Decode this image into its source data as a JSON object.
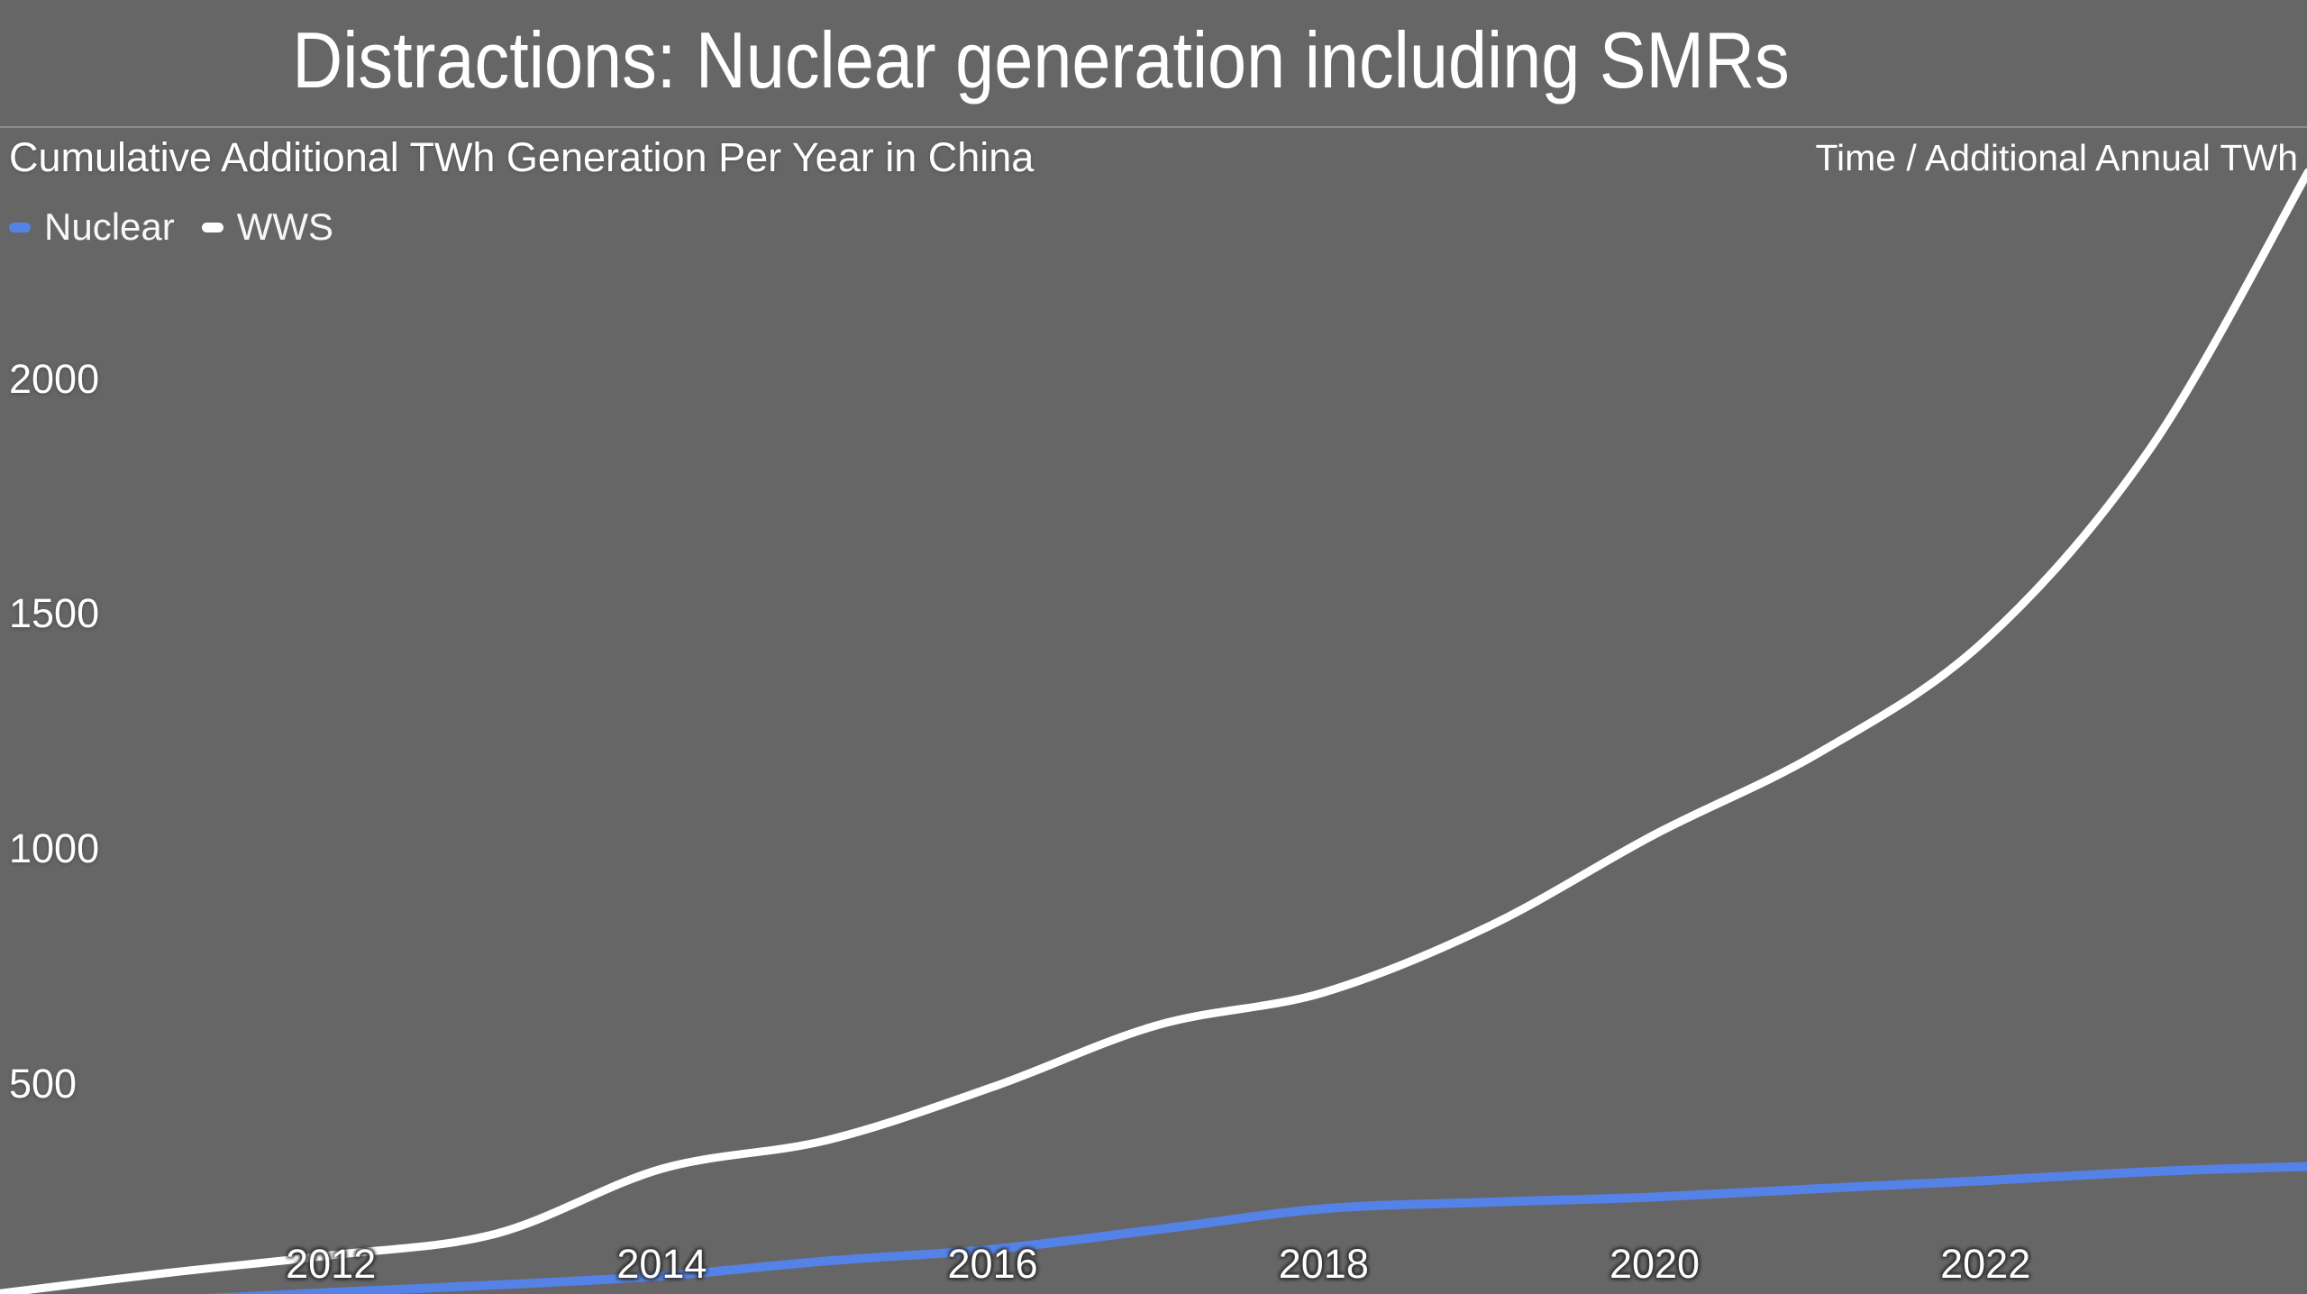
{
  "page": {
    "background_color": "#666666",
    "title": "Distractions: Nuclear generation including SMRs",
    "corner_axis_label": "Time / Additional Annual TWh"
  },
  "chart_data": {
    "type": "line",
    "title": "Cumulative Additional TWh Generation Per Year in China",
    "xlabel": "Time",
    "ylabel": "Additional Annual TWh",
    "x": [
      2010,
      2011,
      2012,
      2013,
      2014,
      2015,
      2016,
      2017,
      2018,
      2019,
      2020,
      2021,
      2022,
      2023,
      2023.95
    ],
    "series": [
      {
        "name": "Nuclear",
        "color": "#5582E7",
        "stroke_width": 10,
        "values": [
          25,
          40,
          57,
          73,
          92,
          124,
          149,
          191,
          235,
          249,
          260,
          278,
          295,
          314,
          325
        ]
      },
      {
        "name": "WWS",
        "color": "#FFFFFF",
        "stroke_width": 9,
        "values": [
          55,
          98,
          136,
          182,
          320,
          381,
          494,
          626,
          695,
          836,
          1031,
          1206,
          1445,
          1854,
          2440
        ]
      }
    ],
    "x_ticks": [
      2012,
      2014,
      2016,
      2018,
      2020,
      2022
    ],
    "y_ticks": [
      500,
      1000,
      1500,
      2000
    ],
    "xlim": [
      2010,
      2024
    ],
    "ylim": [
      0,
      2500
    ],
    "grid": false,
    "legend_position": "top-left"
  }
}
